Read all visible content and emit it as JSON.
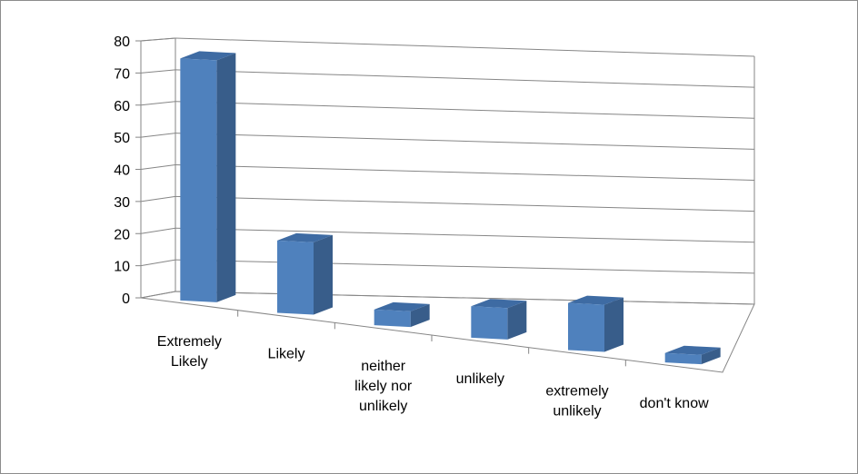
{
  "chart_data": {
    "type": "bar",
    "style": "3d-column",
    "title": "",
    "xlabel": "",
    "ylabel": "",
    "categories": [
      [
        "Extremely",
        "Likely"
      ],
      [
        "Likely"
      ],
      [
        "neither",
        "likely nor",
        "unlikely"
      ],
      [
        "unlikely"
      ],
      [
        "extremely",
        "unlikely"
      ],
      [
        "don't know"
      ]
    ],
    "values": [
      77,
      23,
      5,
      10,
      15,
      3
    ],
    "ylim": [
      0,
      80
    ],
    "yticks": [
      "0",
      "10",
      "20",
      "30",
      "40",
      "50",
      "60",
      "70",
      "80"
    ],
    "grid": true,
    "legend": "none",
    "colors": {
      "front": "#4f81bd",
      "side": "#385d8a",
      "top": "#3e6ba3",
      "grid": "#868686"
    }
  }
}
